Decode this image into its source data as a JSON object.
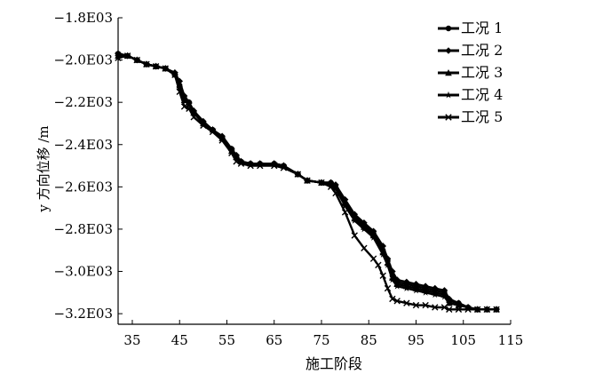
{
  "chart_data": {
    "type": "line",
    "title": "",
    "xlabel": "施工阶段",
    "ylabel": "y 方向位移 /m",
    "xlim": [
      32,
      115
    ],
    "ylim": [
      -3.25,
      -1.8
    ],
    "x_ticks": [
      35,
      45,
      55,
      65,
      75,
      85,
      95,
      105,
      115
    ],
    "x_tick_labels": [
      "35",
      "45",
      "55",
      "65",
      "75",
      "85",
      "95",
      "105",
      "115"
    ],
    "y_ticks": [
      -1.8,
      -2.0,
      -2.2,
      -2.4,
      -2.6,
      -2.8,
      -3.0,
      -3.2
    ],
    "y_tick_labels": [
      "−1.8E03",
      "−2.0E03",
      "−2.2E03",
      "−2.4E03",
      "−2.6E03",
      "−2.8E03",
      "−3.0E03",
      "−3.2E03"
    ],
    "grid": false,
    "legend_position": "top-right",
    "series": [
      {
        "name": "工况 1",
        "marker": "circle",
        "points": [
          [
            32,
            -1.97
          ],
          [
            34,
            -1.98
          ],
          [
            36,
            -2.0
          ],
          [
            38,
            -2.02
          ],
          [
            40,
            -2.03
          ],
          [
            42,
            -2.04
          ],
          [
            44,
            -2.07
          ],
          [
            45,
            -2.12
          ],
          [
            46,
            -2.18
          ],
          [
            47,
            -2.2
          ],
          [
            48,
            -2.25
          ],
          [
            50,
            -2.3
          ],
          [
            52,
            -2.33
          ],
          [
            54,
            -2.37
          ],
          [
            56,
            -2.42
          ],
          [
            57,
            -2.46
          ],
          [
            58,
            -2.48
          ],
          [
            60,
            -2.49
          ],
          [
            62,
            -2.49
          ],
          [
            65,
            -2.49
          ],
          [
            67,
            -2.5
          ],
          [
            70,
            -2.54
          ],
          [
            72,
            -2.57
          ],
          [
            75,
            -2.58
          ],
          [
            77,
            -2.58
          ],
          [
            78,
            -2.6
          ],
          [
            80,
            -2.68
          ],
          [
            82,
            -2.74
          ],
          [
            84,
            -2.78
          ],
          [
            86,
            -2.82
          ],
          [
            88,
            -2.9
          ],
          [
            89,
            -2.95
          ],
          [
            90,
            -3.02
          ],
          [
            91,
            -3.05
          ],
          [
            93,
            -3.06
          ],
          [
            95,
            -3.07
          ],
          [
            97,
            -3.08
          ],
          [
            99,
            -3.09
          ],
          [
            101,
            -3.1
          ],
          [
            102,
            -3.14
          ],
          [
            104,
            -3.15
          ],
          [
            106,
            -3.17
          ],
          [
            108,
            -3.18
          ],
          [
            110,
            -3.18
          ],
          [
            112,
            -3.18
          ]
        ]
      },
      {
        "name": "工况 2",
        "marker": "diamond",
        "points": [
          [
            32,
            -1.97
          ],
          [
            34,
            -1.98
          ],
          [
            36,
            -2.0
          ],
          [
            38,
            -2.02
          ],
          [
            40,
            -2.03
          ],
          [
            42,
            -2.04
          ],
          [
            44,
            -2.06
          ],
          [
            45,
            -2.1
          ],
          [
            46,
            -2.17
          ],
          [
            47,
            -2.2
          ],
          [
            48,
            -2.24
          ],
          [
            50,
            -2.29
          ],
          [
            52,
            -2.33
          ],
          [
            54,
            -2.36
          ],
          [
            56,
            -2.42
          ],
          [
            57,
            -2.45
          ],
          [
            58,
            -2.48
          ],
          [
            60,
            -2.49
          ],
          [
            62,
            -2.49
          ],
          [
            65,
            -2.49
          ],
          [
            67,
            -2.5
          ],
          [
            70,
            -2.54
          ],
          [
            72,
            -2.57
          ],
          [
            75,
            -2.58
          ],
          [
            77,
            -2.58
          ],
          [
            78,
            -2.59
          ],
          [
            80,
            -2.66
          ],
          [
            82,
            -2.73
          ],
          [
            84,
            -2.77
          ],
          [
            86,
            -2.81
          ],
          [
            88,
            -2.88
          ],
          [
            89,
            -2.94
          ],
          [
            90,
            -3.0
          ],
          [
            91,
            -3.04
          ],
          [
            93,
            -3.05
          ],
          [
            95,
            -3.06
          ],
          [
            97,
            -3.07
          ],
          [
            99,
            -3.08
          ],
          [
            101,
            -3.09
          ],
          [
            102,
            -3.13
          ],
          [
            104,
            -3.15
          ],
          [
            106,
            -3.17
          ],
          [
            108,
            -3.18
          ],
          [
            110,
            -3.18
          ],
          [
            112,
            -3.18
          ]
        ]
      },
      {
        "name": "工况 3",
        "marker": "triangle",
        "points": [
          [
            32,
            -1.98
          ],
          [
            34,
            -1.98
          ],
          [
            36,
            -2.0
          ],
          [
            38,
            -2.02
          ],
          [
            40,
            -2.03
          ],
          [
            42,
            -2.04
          ],
          [
            44,
            -2.06
          ],
          [
            45,
            -2.12
          ],
          [
            46,
            -2.19
          ],
          [
            47,
            -2.21
          ],
          [
            48,
            -2.25
          ],
          [
            50,
            -2.3
          ],
          [
            52,
            -2.33
          ],
          [
            54,
            -2.37
          ],
          [
            56,
            -2.43
          ],
          [
            57,
            -2.46
          ],
          [
            58,
            -2.48
          ],
          [
            60,
            -2.49
          ],
          [
            62,
            -2.49
          ],
          [
            65,
            -2.49
          ],
          [
            67,
            -2.5
          ],
          [
            70,
            -2.54
          ],
          [
            72,
            -2.57
          ],
          [
            75,
            -2.58
          ],
          [
            77,
            -2.58
          ],
          [
            78,
            -2.6
          ],
          [
            80,
            -2.67
          ],
          [
            82,
            -2.75
          ],
          [
            84,
            -2.79
          ],
          [
            86,
            -2.83
          ],
          [
            88,
            -2.91
          ],
          [
            89,
            -2.96
          ],
          [
            90,
            -3.03
          ],
          [
            91,
            -3.06
          ],
          [
            93,
            -3.07
          ],
          [
            95,
            -3.08
          ],
          [
            97,
            -3.09
          ],
          [
            99,
            -3.1
          ],
          [
            101,
            -3.11
          ],
          [
            102,
            -3.15
          ],
          [
            104,
            -3.16
          ],
          [
            106,
            -3.17
          ],
          [
            108,
            -3.18
          ],
          [
            110,
            -3.18
          ],
          [
            112,
            -3.18
          ]
        ]
      },
      {
        "name": "工况 4",
        "marker": "star",
        "points": [
          [
            32,
            -1.97
          ],
          [
            34,
            -1.98
          ],
          [
            36,
            -2.0
          ],
          [
            38,
            -2.02
          ],
          [
            40,
            -2.03
          ],
          [
            42,
            -2.04
          ],
          [
            44,
            -2.07
          ],
          [
            45,
            -2.13
          ],
          [
            46,
            -2.19
          ],
          [
            47,
            -2.21
          ],
          [
            48,
            -2.25
          ],
          [
            50,
            -2.3
          ],
          [
            52,
            -2.33
          ],
          [
            54,
            -2.37
          ],
          [
            56,
            -2.43
          ],
          [
            57,
            -2.46
          ],
          [
            58,
            -2.48
          ],
          [
            60,
            -2.49
          ],
          [
            62,
            -2.49
          ],
          [
            65,
            -2.49
          ],
          [
            67,
            -2.5
          ],
          [
            70,
            -2.54
          ],
          [
            72,
            -2.57
          ],
          [
            75,
            -2.58
          ],
          [
            77,
            -2.59
          ],
          [
            78,
            -2.61
          ],
          [
            80,
            -2.69
          ],
          [
            82,
            -2.76
          ],
          [
            84,
            -2.8
          ],
          [
            86,
            -2.84
          ],
          [
            88,
            -2.92
          ],
          [
            89,
            -2.97
          ],
          [
            90,
            -3.04
          ],
          [
            91,
            -3.07
          ],
          [
            93,
            -3.08
          ],
          [
            95,
            -3.09
          ],
          [
            97,
            -3.1
          ],
          [
            99,
            -3.11
          ],
          [
            101,
            -3.12
          ],
          [
            102,
            -3.15
          ],
          [
            104,
            -3.16
          ],
          [
            106,
            -3.17
          ],
          [
            108,
            -3.18
          ],
          [
            110,
            -3.18
          ],
          [
            112,
            -3.18
          ]
        ]
      },
      {
        "name": "工况 5",
        "marker": "x",
        "points": [
          [
            32,
            -1.99
          ],
          [
            34,
            -1.98
          ],
          [
            36,
            -2.0
          ],
          [
            38,
            -2.02
          ],
          [
            40,
            -2.03
          ],
          [
            42,
            -2.04
          ],
          [
            44,
            -2.07
          ],
          [
            45,
            -2.15
          ],
          [
            46,
            -2.22
          ],
          [
            47,
            -2.23
          ],
          [
            48,
            -2.27
          ],
          [
            50,
            -2.31
          ],
          [
            52,
            -2.34
          ],
          [
            54,
            -2.38
          ],
          [
            56,
            -2.44
          ],
          [
            57,
            -2.48
          ],
          [
            58,
            -2.49
          ],
          [
            60,
            -2.5
          ],
          [
            62,
            -2.5
          ],
          [
            65,
            -2.5
          ],
          [
            67,
            -2.51
          ],
          [
            70,
            -2.54
          ],
          [
            72,
            -2.57
          ],
          [
            75,
            -2.58
          ],
          [
            77,
            -2.6
          ],
          [
            78,
            -2.63
          ],
          [
            80,
            -2.72
          ],
          [
            82,
            -2.83
          ],
          [
            84,
            -2.89
          ],
          [
            86,
            -2.94
          ],
          [
            87,
            -2.97
          ],
          [
            88,
            -3.02
          ],
          [
            89,
            -3.08
          ],
          [
            90,
            -3.13
          ],
          [
            91,
            -3.14
          ],
          [
            93,
            -3.15
          ],
          [
            95,
            -3.16
          ],
          [
            97,
            -3.16
          ],
          [
            99,
            -3.17
          ],
          [
            101,
            -3.17
          ],
          [
            102,
            -3.18
          ],
          [
            104,
            -3.18
          ],
          [
            106,
            -3.18
          ],
          [
            108,
            -3.18
          ],
          [
            110,
            -3.18
          ],
          [
            112,
            -3.18
          ]
        ]
      }
    ]
  }
}
